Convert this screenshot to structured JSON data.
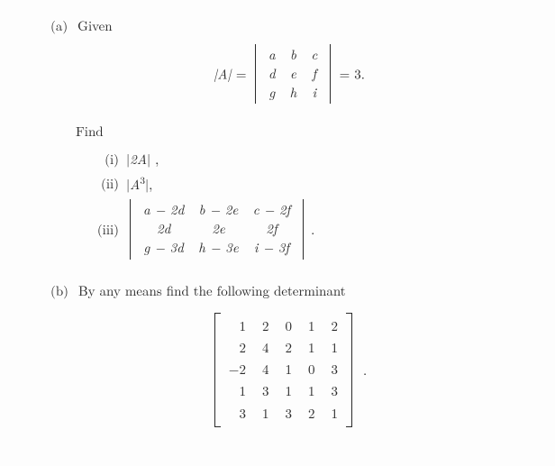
{
  "partA": {
    "label": "(a)",
    "given": "Given",
    "eq": {
      "lhs": "|A| =",
      "matrix": [
        [
          "a",
          "b",
          "c"
        ],
        [
          "d",
          "e",
          "f"
        ],
        [
          "g",
          "h",
          "i"
        ]
      ],
      "rhs": "= 3."
    },
    "find": "Find",
    "items": {
      "i": {
        "label": "(i)",
        "text": "|2A| ,"
      },
      "ii": {
        "label": "(ii)",
        "text": "|A³|,"
      },
      "iii": {
        "label": "(iii)",
        "matrix": [
          [
            "a − 2d",
            "b − 2e",
            "c − 2f"
          ],
          [
            "2d",
            "2e",
            "2f"
          ],
          [
            "g − 3d",
            "h − 3e",
            "i − 3f"
          ]
        ],
        "tail": "."
      }
    }
  },
  "partB": {
    "label": "(b)",
    "text": "By any means find the following determinant",
    "matrix": [
      [
        "1",
        "2",
        "0",
        "1",
        "2"
      ],
      [
        "2",
        "4",
        "2",
        "1",
        "1"
      ],
      [
        "−2",
        "4",
        "1",
        "0",
        "3"
      ],
      [
        "1",
        "3",
        "1",
        "1",
        "3"
      ],
      [
        "3",
        "1",
        "3",
        "2",
        "1"
      ]
    ],
    "tail": "."
  },
  "style": {
    "text_color": "#2a2a2a",
    "background": "#fdfdfd",
    "font_size_body": 15,
    "matrix3_cell_padding": "1px 8px",
    "matrix5_cell_padding": "2px 9px"
  }
}
